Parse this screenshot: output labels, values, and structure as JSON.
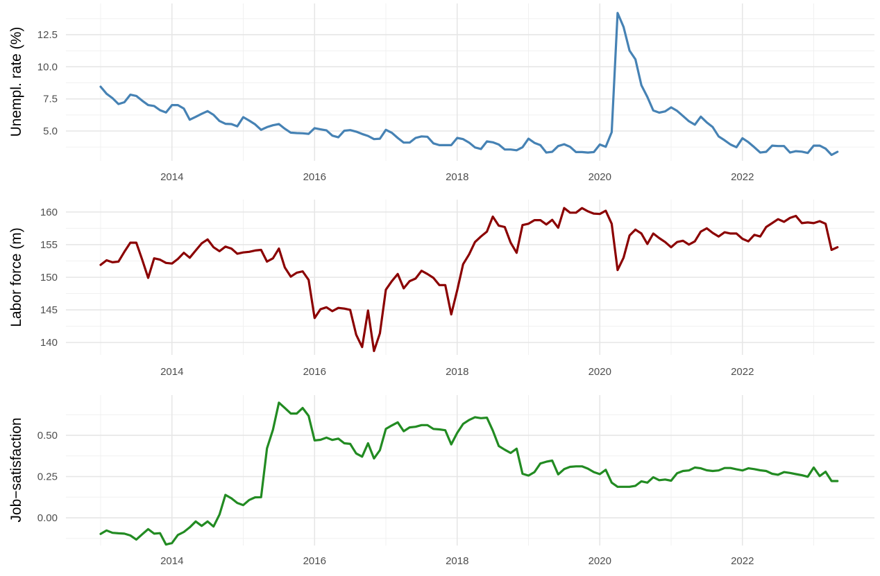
{
  "chart_data": [
    {
      "type": "line",
      "ylabel": "Unempl. rate (%)",
      "xlabel": "",
      "color": "#4682b4",
      "x_start": "2013-01",
      "x_frequency": "monthly",
      "x_ticks": [
        "2014",
        "2016",
        "2018",
        "2020",
        "2022"
      ],
      "x_tick_values": [
        2014,
        2016,
        2018,
        2020,
        2022
      ],
      "ylim": [
        2.68,
        14.93
      ],
      "y_ticks": [
        "5.0",
        "7.5",
        "10.0",
        "12.5"
      ],
      "y_tick_values": [
        5.0,
        7.5,
        10.0,
        12.5
      ],
      "grid": true,
      "values": [
        8.45,
        7.9,
        7.56,
        7.1,
        7.24,
        7.83,
        7.73,
        7.36,
        7.02,
        6.95,
        6.62,
        6.44,
        7.02,
        7.02,
        6.75,
        5.88,
        6.1,
        6.34,
        6.55,
        6.26,
        5.78,
        5.56,
        5.54,
        5.36,
        6.08,
        5.81,
        5.52,
        5.09,
        5.3,
        5.45,
        5.54,
        5.18,
        4.87,
        4.84,
        4.82,
        4.78,
        5.22,
        5.13,
        5.05,
        4.64,
        4.51,
        5.02,
        5.07,
        4.95,
        4.77,
        4.62,
        4.37,
        4.4,
        5.09,
        4.86,
        4.46,
        4.1,
        4.1,
        4.46,
        4.58,
        4.55,
        4.04,
        3.9,
        3.9,
        3.9,
        4.46,
        4.37,
        4.1,
        3.72,
        3.6,
        4.19,
        4.12,
        3.95,
        3.56,
        3.56,
        3.5,
        3.74,
        4.4,
        4.08,
        3.9,
        3.32,
        3.38,
        3.83,
        3.97,
        3.77,
        3.36,
        3.36,
        3.32,
        3.36,
        3.95,
        3.77,
        4.91,
        14.19,
        13.1,
        11.26,
        10.58,
        8.56,
        7.65,
        6.6,
        6.43,
        6.53,
        6.84,
        6.57,
        6.17,
        5.76,
        5.49,
        6.12,
        5.67,
        5.31,
        4.58,
        4.28,
        3.95,
        3.74,
        4.44,
        4.13,
        3.74,
        3.32,
        3.38,
        3.86,
        3.83,
        3.83,
        3.32,
        3.43,
        3.39,
        3.29,
        3.86,
        3.86,
        3.63,
        3.14,
        3.38
      ]
    },
    {
      "type": "line",
      "ylabel": "Labor force (m)",
      "xlabel": "",
      "color": "#8b0000",
      "x_start": "2013-01",
      "x_frequency": "monthly",
      "x_ticks": [
        "2014",
        "2016",
        "2018",
        "2020",
        "2022"
      ],
      "x_tick_values": [
        2014,
        2016,
        2018,
        2020,
        2022
      ],
      "ylim": [
        138.1,
        161.9
      ],
      "y_ticks": [
        "140",
        "145",
        "150",
        "155",
        "160"
      ],
      "y_tick_values": [
        140,
        145,
        150,
        155,
        160
      ],
      "grid": true,
      "values": [
        151.9,
        152.6,
        152.3,
        152.4,
        153.9,
        155.3,
        155.3,
        152.7,
        149.9,
        152.9,
        152.7,
        152.2,
        152.1,
        152.8,
        153.75,
        153.0,
        154.1,
        155.2,
        155.8,
        154.6,
        154.0,
        154.7,
        154.4,
        153.6,
        153.8,
        153.9,
        154.1,
        154.2,
        152.4,
        152.9,
        154.4,
        151.5,
        150.1,
        150.7,
        150.9,
        149.6,
        143.75,
        145.1,
        145.4,
        144.8,
        145.3,
        145.2,
        145.0,
        141.2,
        139.3,
        144.9,
        138.7,
        141.4,
        148.1,
        149.4,
        150.5,
        148.3,
        149.4,
        149.8,
        151.0,
        150.5,
        149.9,
        148.8,
        148.8,
        144.3,
        148.0,
        152.0,
        153.5,
        155.4,
        156.25,
        157.0,
        159.3,
        157.9,
        157.7,
        155.3,
        153.75,
        158.0,
        158.2,
        158.75,
        158.75,
        158.1,
        158.8,
        157.6,
        160.6,
        159.9,
        159.9,
        160.6,
        160.1,
        159.75,
        159.7,
        160.2,
        158.2,
        151.1,
        153.0,
        156.4,
        157.3,
        156.7,
        155.1,
        156.7,
        156.0,
        155.4,
        154.6,
        155.4,
        155.6,
        155.0,
        155.5,
        157.0,
        157.5,
        156.8,
        156.25,
        156.9,
        156.7,
        156.7,
        155.9,
        155.5,
        156.5,
        156.25,
        157.7,
        158.3,
        158.9,
        158.5,
        159.1,
        159.4,
        158.3,
        158.4,
        158.3,
        158.6,
        158.2,
        154.2,
        154.6
      ]
    },
    {
      "type": "line",
      "ylabel": "Job−satisfaction",
      "xlabel": "",
      "color": "#228b22",
      "x_start": "2013-01",
      "x_frequency": "monthly",
      "x_ticks": [
        "2014",
        "2016",
        "2018",
        "2020",
        "2022"
      ],
      "x_tick_values": [
        2014,
        2016,
        2018,
        2020,
        2022
      ],
      "ylim": [
        -0.168,
        0.744
      ],
      "y_ticks": [
        "0.00",
        "0.25",
        "0.50"
      ],
      "y_tick_values": [
        0.0,
        0.25,
        0.5
      ],
      "grid": true,
      "values": [
        -0.098,
        -0.077,
        -0.091,
        -0.094,
        -0.096,
        -0.107,
        -0.132,
        -0.1,
        -0.069,
        -0.096,
        -0.093,
        -0.162,
        -0.153,
        -0.104,
        -0.086,
        -0.058,
        -0.022,
        -0.049,
        -0.022,
        -0.053,
        0.02,
        0.139,
        0.118,
        0.09,
        0.077,
        0.108,
        0.124,
        0.125,
        0.421,
        0.534,
        0.698,
        0.666,
        0.632,
        0.632,
        0.666,
        0.618,
        0.469,
        0.473,
        0.486,
        0.472,
        0.48,
        0.452,
        0.448,
        0.39,
        0.371,
        0.452,
        0.36,
        0.41,
        0.539,
        0.56,
        0.579,
        0.525,
        0.548,
        0.552,
        0.562,
        0.562,
        0.539,
        0.536,
        0.531,
        0.445,
        0.515,
        0.569,
        0.593,
        0.61,
        0.604,
        0.607,
        0.529,
        0.435,
        0.413,
        0.393,
        0.419,
        0.267,
        0.256,
        0.277,
        0.329,
        0.34,
        0.347,
        0.263,
        0.295,
        0.309,
        0.312,
        0.312,
        0.298,
        0.277,
        0.265,
        0.291,
        0.213,
        0.188,
        0.188,
        0.188,
        0.194,
        0.221,
        0.213,
        0.246,
        0.228,
        0.232,
        0.225,
        0.27,
        0.284,
        0.287,
        0.305,
        0.3,
        0.288,
        0.284,
        0.287,
        0.302,
        0.302,
        0.294,
        0.287,
        0.3,
        0.295,
        0.288,
        0.284,
        0.267,
        0.261,
        0.277,
        0.272,
        0.265,
        0.258,
        0.249,
        0.305,
        0.253,
        0.279,
        0.223,
        0.223
      ]
    }
  ]
}
